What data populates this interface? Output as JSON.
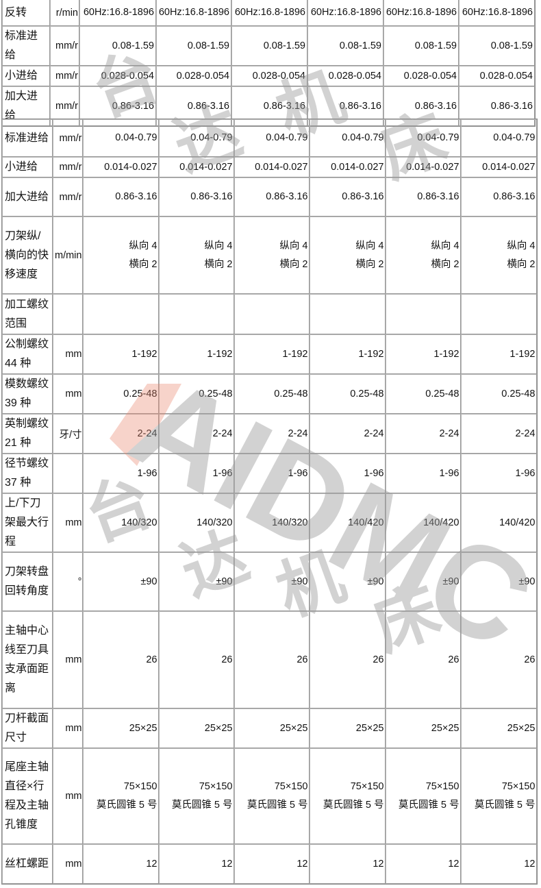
{
  "watermark": {
    "logo_text": "AIDMC",
    "chinese_text": [
      "台",
      "达",
      "机",
      "床"
    ],
    "color": "#9a9a9a",
    "accent": "#e8836b"
  },
  "table_top": {
    "rows": [
      {
        "label": "反转",
        "unit": "r/min",
        "values": [
          [
            "60Hz:16.8-1896"
          ],
          [
            "60Hz:16.8-1896"
          ],
          [
            "60Hz:16.8-1896"
          ],
          [
            "60Hz:16.8-1896"
          ],
          [
            "60Hz:16.8-1896"
          ],
          [
            "60Hz:16.8-1896"
          ]
        ]
      },
      {
        "label": "标准进给",
        "unit": "mm/r",
        "values": [
          [
            "0.08-1.59"
          ],
          [
            "0.08-1.59"
          ],
          [
            "0.08-1.59"
          ],
          [
            "0.08-1.59"
          ],
          [
            "0.08-1.59"
          ],
          [
            "0.08-1.59"
          ]
        ]
      },
      {
        "label": "小进给",
        "unit": "mm/r",
        "values": [
          [
            "0.028-0.054"
          ],
          [
            "0.028-0.054"
          ],
          [
            "0.028-0.054"
          ],
          [
            "0.028-0.054"
          ],
          [
            "0.028-0.054"
          ],
          [
            "0.028-0.054"
          ]
        ]
      },
      {
        "label": "加大进给",
        "unit": "mm/r",
        "values": [
          [
            "0.86-3.16"
          ],
          [
            "0.86-3.16"
          ],
          [
            "0.86-3.16"
          ],
          [
            "0.86-3.16"
          ],
          [
            "0.86-3.16"
          ],
          [
            "0.86-3.16"
          ]
        ]
      }
    ]
  },
  "table_main": {
    "rows": [
      {
        "label": "标准进给",
        "unit": "mm/r",
        "values": [
          [
            "0.04-0.79"
          ],
          [
            "0.04-0.79"
          ],
          [
            "0.04-0.79"
          ],
          [
            "0.04-0.79"
          ],
          [
            "0.04-0.79"
          ],
          [
            "0.04-0.79"
          ]
        ]
      },
      {
        "label": "小进给",
        "unit": "mm/r",
        "values": [
          [
            "0.014-0.027"
          ],
          [
            "0.014-0.027"
          ],
          [
            "0.014-0.027"
          ],
          [
            "0.014-0.027"
          ],
          [
            "0.014-0.027"
          ],
          [
            "0.014-0.027"
          ]
        ]
      },
      {
        "label": "加大进给",
        "unit": "mm/r",
        "values": [
          [
            "0.86-3.16"
          ],
          [
            "0.86-3.16"
          ],
          [
            "0.86-3.16"
          ],
          [
            "0.86-3.16"
          ],
          [
            "0.86-3.16"
          ],
          [
            "0.86-3.16"
          ]
        ]
      },
      {
        "label": "刀架纵/横向的快移速度",
        "unit": "m/min",
        "values": [
          [
            "纵向 4",
            "横向 2"
          ],
          [
            "纵向 4",
            "横向 2"
          ],
          [
            "纵向 4",
            "横向 2"
          ],
          [
            "纵向 4",
            "横向 2"
          ],
          [
            "纵向 4",
            "横向 2"
          ],
          [
            "纵向 4",
            "横向 2"
          ]
        ]
      },
      {
        "label": "加工螺纹范围",
        "unit": "",
        "values": [
          [
            ""
          ],
          [
            ""
          ],
          [
            ""
          ],
          [
            ""
          ],
          [
            ""
          ],
          [
            ""
          ]
        ]
      },
      {
        "label": "公制螺纹 44 种",
        "unit": "mm",
        "values": [
          [
            "1-192"
          ],
          [
            "1-192"
          ],
          [
            "1-192"
          ],
          [
            "1-192"
          ],
          [
            "1-192"
          ],
          [
            "1-192"
          ]
        ]
      },
      {
        "label": "模数螺纹 39 种",
        "unit": "mm",
        "values": [
          [
            "0.25-48"
          ],
          [
            "0.25-48"
          ],
          [
            "0.25-48"
          ],
          [
            "0.25-48"
          ],
          [
            "0.25-48"
          ],
          [
            "0.25-48"
          ]
        ]
      },
      {
        "label": "英制螺纹 21 种",
        "unit": "牙/寸",
        "values": [
          [
            "2-24"
          ],
          [
            "2-24"
          ],
          [
            "2-24"
          ],
          [
            "2-24"
          ],
          [
            "2-24"
          ],
          [
            "2-24"
          ]
        ]
      },
      {
        "label": "径节螺纹 37 种",
        "unit": "",
        "values": [
          [
            "1-96"
          ],
          [
            "1-96"
          ],
          [
            "1-96"
          ],
          [
            "1-96"
          ],
          [
            "1-96"
          ],
          [
            "1-96"
          ]
        ]
      },
      {
        "label": "上/下刀架最大行程",
        "unit": "mm",
        "values": [
          [
            "140/320"
          ],
          [
            "140/320"
          ],
          [
            "140/320"
          ],
          [
            "140/420"
          ],
          [
            "140/420"
          ],
          [
            "140/420"
          ]
        ]
      },
      {
        "label": "刀架转盘回转角度",
        "unit": "°",
        "values": [
          [
            "±90"
          ],
          [
            "±90"
          ],
          [
            "±90"
          ],
          [
            "±90"
          ],
          [
            "±90"
          ],
          [
            "±90"
          ]
        ]
      },
      {
        "label": "主轴中心线至刀具支承面距离",
        "unit": "mm",
        "values": [
          [
            "26"
          ],
          [
            "26"
          ],
          [
            "26"
          ],
          [
            "26"
          ],
          [
            "26"
          ],
          [
            "26"
          ]
        ]
      },
      {
        "label": "刀杆截面尺寸",
        "unit": "mm",
        "values": [
          [
            "25×25"
          ],
          [
            "25×25"
          ],
          [
            "25×25"
          ],
          [
            "25×25"
          ],
          [
            "25×25"
          ],
          [
            "25×25"
          ]
        ]
      },
      {
        "label": "尾座主轴直径×行程及主轴孔锥度",
        "unit": "mm",
        "values": [
          [
            "75×150",
            "莫氏圆锥 5 号"
          ],
          [
            "75×150",
            "莫氏圆锥 5 号"
          ],
          [
            "75×150",
            "莫氏圆锥 5 号"
          ],
          [
            "75×150",
            "莫氏圆锥 5 号"
          ],
          [
            "75×150",
            "莫氏圆锥 5 号"
          ],
          [
            "75×150",
            "莫氏圆锥 5 号"
          ]
        ]
      },
      {
        "label": "丝杠螺距",
        "unit": "mm",
        "values": [
          [
            "12"
          ],
          [
            "12"
          ],
          [
            "12"
          ],
          [
            "12"
          ],
          [
            "12"
          ],
          [
            "12"
          ]
        ]
      }
    ]
  }
}
